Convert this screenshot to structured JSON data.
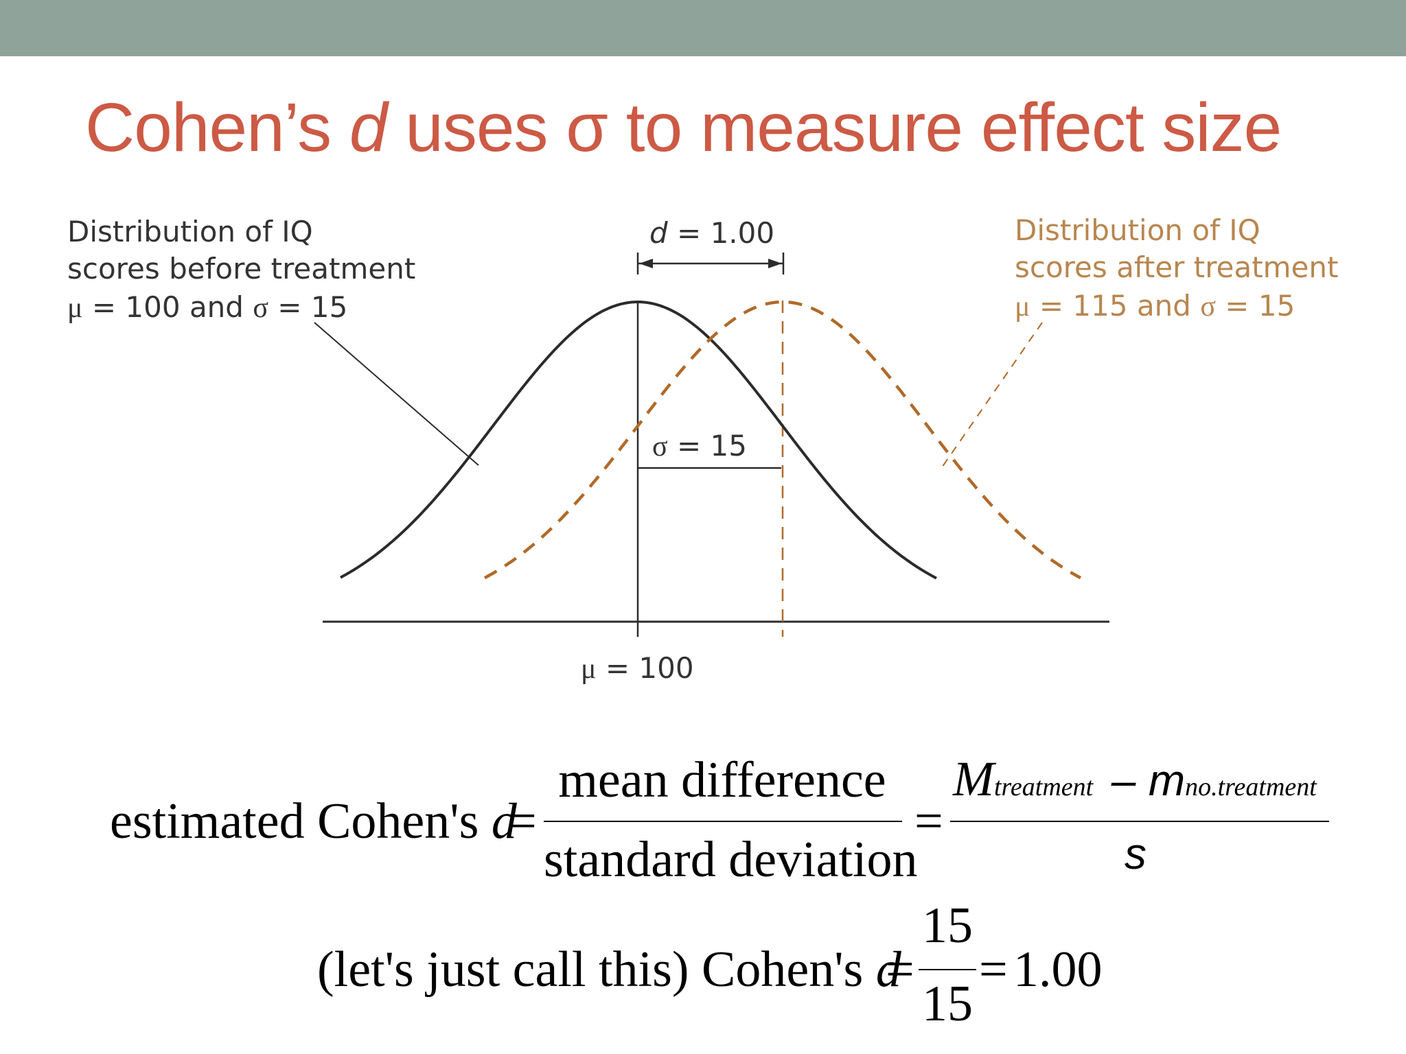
{
  "title": {
    "part1": "Cohen’s ",
    "part2": "d",
    "part3": " uses σ to measure effect size"
  },
  "diagram": {
    "left_label": [
      "Distribution of IQ",
      "scores before treatment"
    ],
    "left_params": {
      "mu": "μ",
      "mid": " = 100 and ",
      "sigma": "σ",
      "end": " = 15"
    },
    "right_label": [
      "Distribution of IQ",
      "scores after treatment"
    ],
    "right_params": {
      "mu": "μ",
      "mid": " = 115 and ",
      "sigma": "σ",
      "end": " = 15"
    },
    "d_label": {
      "d": "d",
      "rest": " = 1.00"
    },
    "sigma_label": {
      "sigma": "σ",
      "rest": " = 15"
    },
    "mu_label": {
      "mu": "μ",
      "rest": " = 100"
    },
    "colors": {
      "before": "#2b2b2b",
      "after": "#b06a2a",
      "after_text": "#b8864f"
    }
  },
  "formula1": {
    "lhs": "estimated Cohen's ",
    "d": "d",
    "eq": "=",
    "num": "mean difference",
    "den": "standard deviation",
    "eq2": "=",
    "M": "M",
    "sub_treatment": "treatment",
    "minus": "–",
    "m": "m",
    "sub_no": "no.treatment",
    "s": "s"
  },
  "formula2": {
    "lhs": "(let's just call this) Cohen's ",
    "d": "d",
    "eq": "=",
    "num": "15",
    "den": "15",
    "eq2": "=",
    "result": "1.00"
  }
}
